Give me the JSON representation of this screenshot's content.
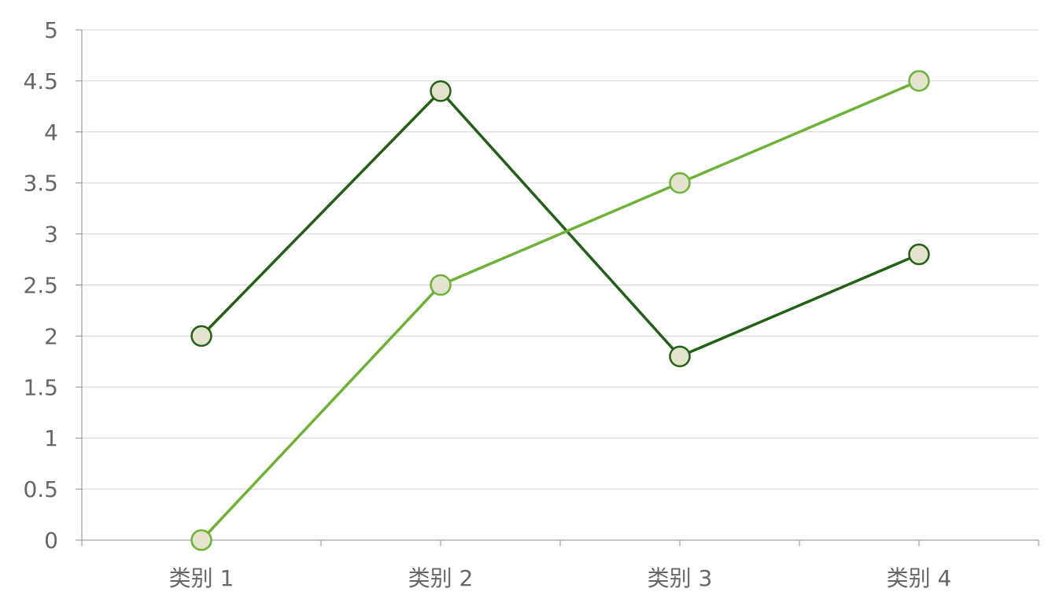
{
  "chart_data": {
    "type": "line",
    "categories": [
      "类别 1",
      "类别 2",
      "类别 3",
      "类别 4"
    ],
    "series": [
      {
        "values": [
          2,
          4.4,
          1.8,
          2.8
        ],
        "color": "#235f17"
      },
      {
        "values": [
          0,
          2.5,
          3.5,
          4.5
        ],
        "color": "#6eb137"
      }
    ],
    "ylim": [
      0,
      5
    ],
    "yticks": [
      "0",
      "0.5",
      "1",
      "1.5",
      "2",
      "2.5",
      "3",
      "3.5",
      "4",
      "4.5",
      "5"
    ],
    "grid": true,
    "marker_fill": "#e2e3cd",
    "title": "",
    "xlabel": "",
    "ylabel": ""
  }
}
